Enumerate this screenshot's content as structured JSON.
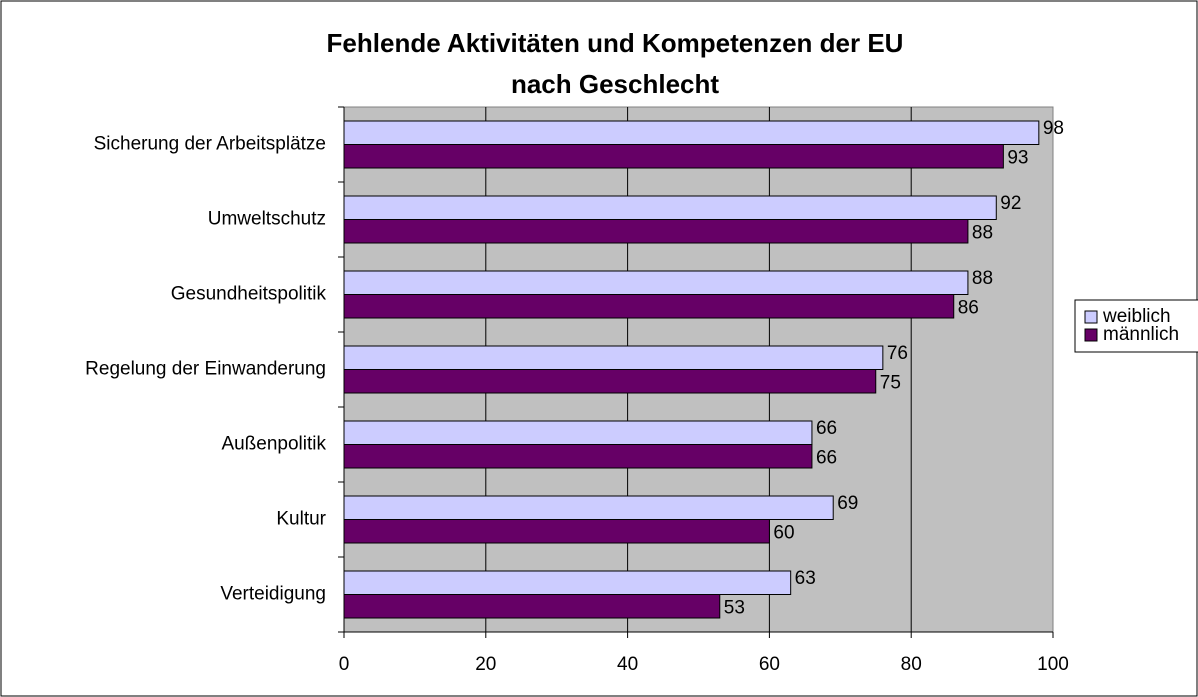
{
  "chart_data": {
    "type": "hbar",
    "title": [
      "Fehlende Aktivitäten und Kompetenzen der EU",
      "nach Geschlecht"
    ],
    "categories": [
      "Sicherung der Arbeitsplätze",
      "Umweltschutz",
      "Gesundheitspolitik",
      "Regelung der Einwanderung",
      "Außenpolitik",
      "Kultur",
      "Verteidigung"
    ],
    "series": [
      {
        "name": "weiblich",
        "color": "#ccccff",
        "values": [
          98,
          92,
          88,
          76,
          66,
          69,
          63
        ]
      },
      {
        "name": "männlich",
        "color": "#660066",
        "values": [
          93,
          88,
          86,
          75,
          66,
          60,
          53
        ]
      }
    ],
    "xlim": [
      0,
      100
    ],
    "xticks": [
      0,
      20,
      40,
      60,
      80,
      100
    ],
    "grid": true,
    "legend": "right"
  }
}
